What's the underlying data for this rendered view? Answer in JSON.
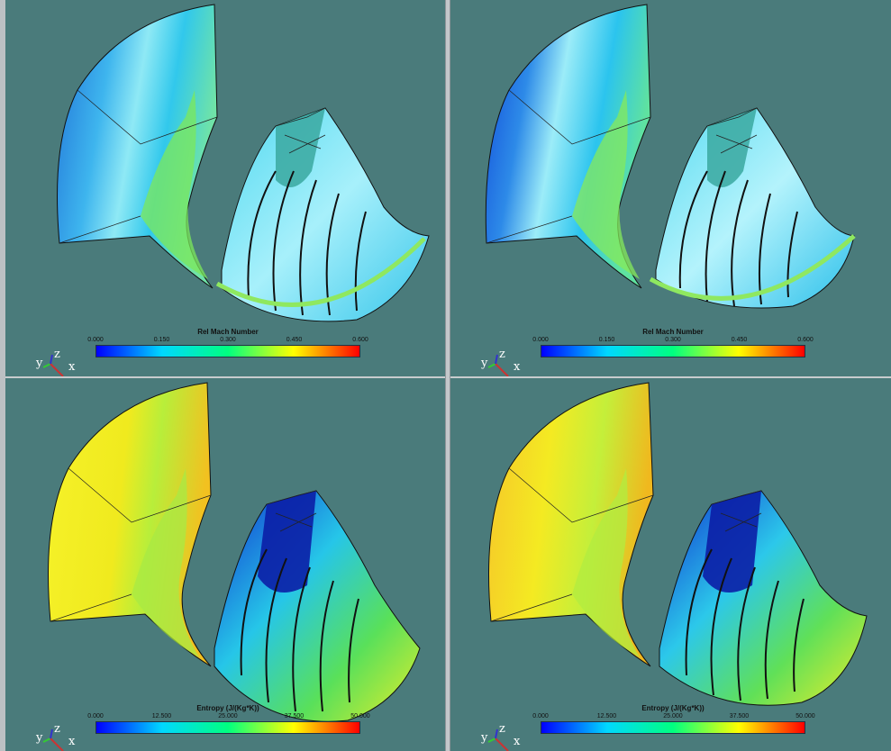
{
  "panels": [
    {
      "id": "tl",
      "field": "mach",
      "legend": {
        "title": "Rel Mach Number",
        "ticks": [
          "0.000",
          "0.150",
          "0.300",
          "0.450",
          "0.600"
        ]
      }
    },
    {
      "id": "tr",
      "field": "mach",
      "legend": {
        "title": "Rel Mach Number",
        "ticks": [
          "0.000",
          "0.150",
          "0.300",
          "0.450",
          "0.600"
        ]
      }
    },
    {
      "id": "bl",
      "field": "entropy",
      "legend": {
        "title": "Entropy (J/(Kg*K))",
        "ticks": [
          "0.000",
          "12.500",
          "25.000",
          "37.500",
          "50.000"
        ]
      }
    },
    {
      "id": "br",
      "field": "entropy",
      "legend": {
        "title": "Entropy (J/(Kg*K))",
        "ticks": [
          "0.000",
          "12.500",
          "25.000",
          "37.500",
          "50.000"
        ]
      }
    }
  ],
  "axes": {
    "y": "y",
    "z": "z",
    "x": "x"
  },
  "colormap": [
    "#0000ff",
    "#00d8ff",
    "#00ff80",
    "#ffff00",
    "#ff0000"
  ],
  "background_color": "#4a7b7b"
}
